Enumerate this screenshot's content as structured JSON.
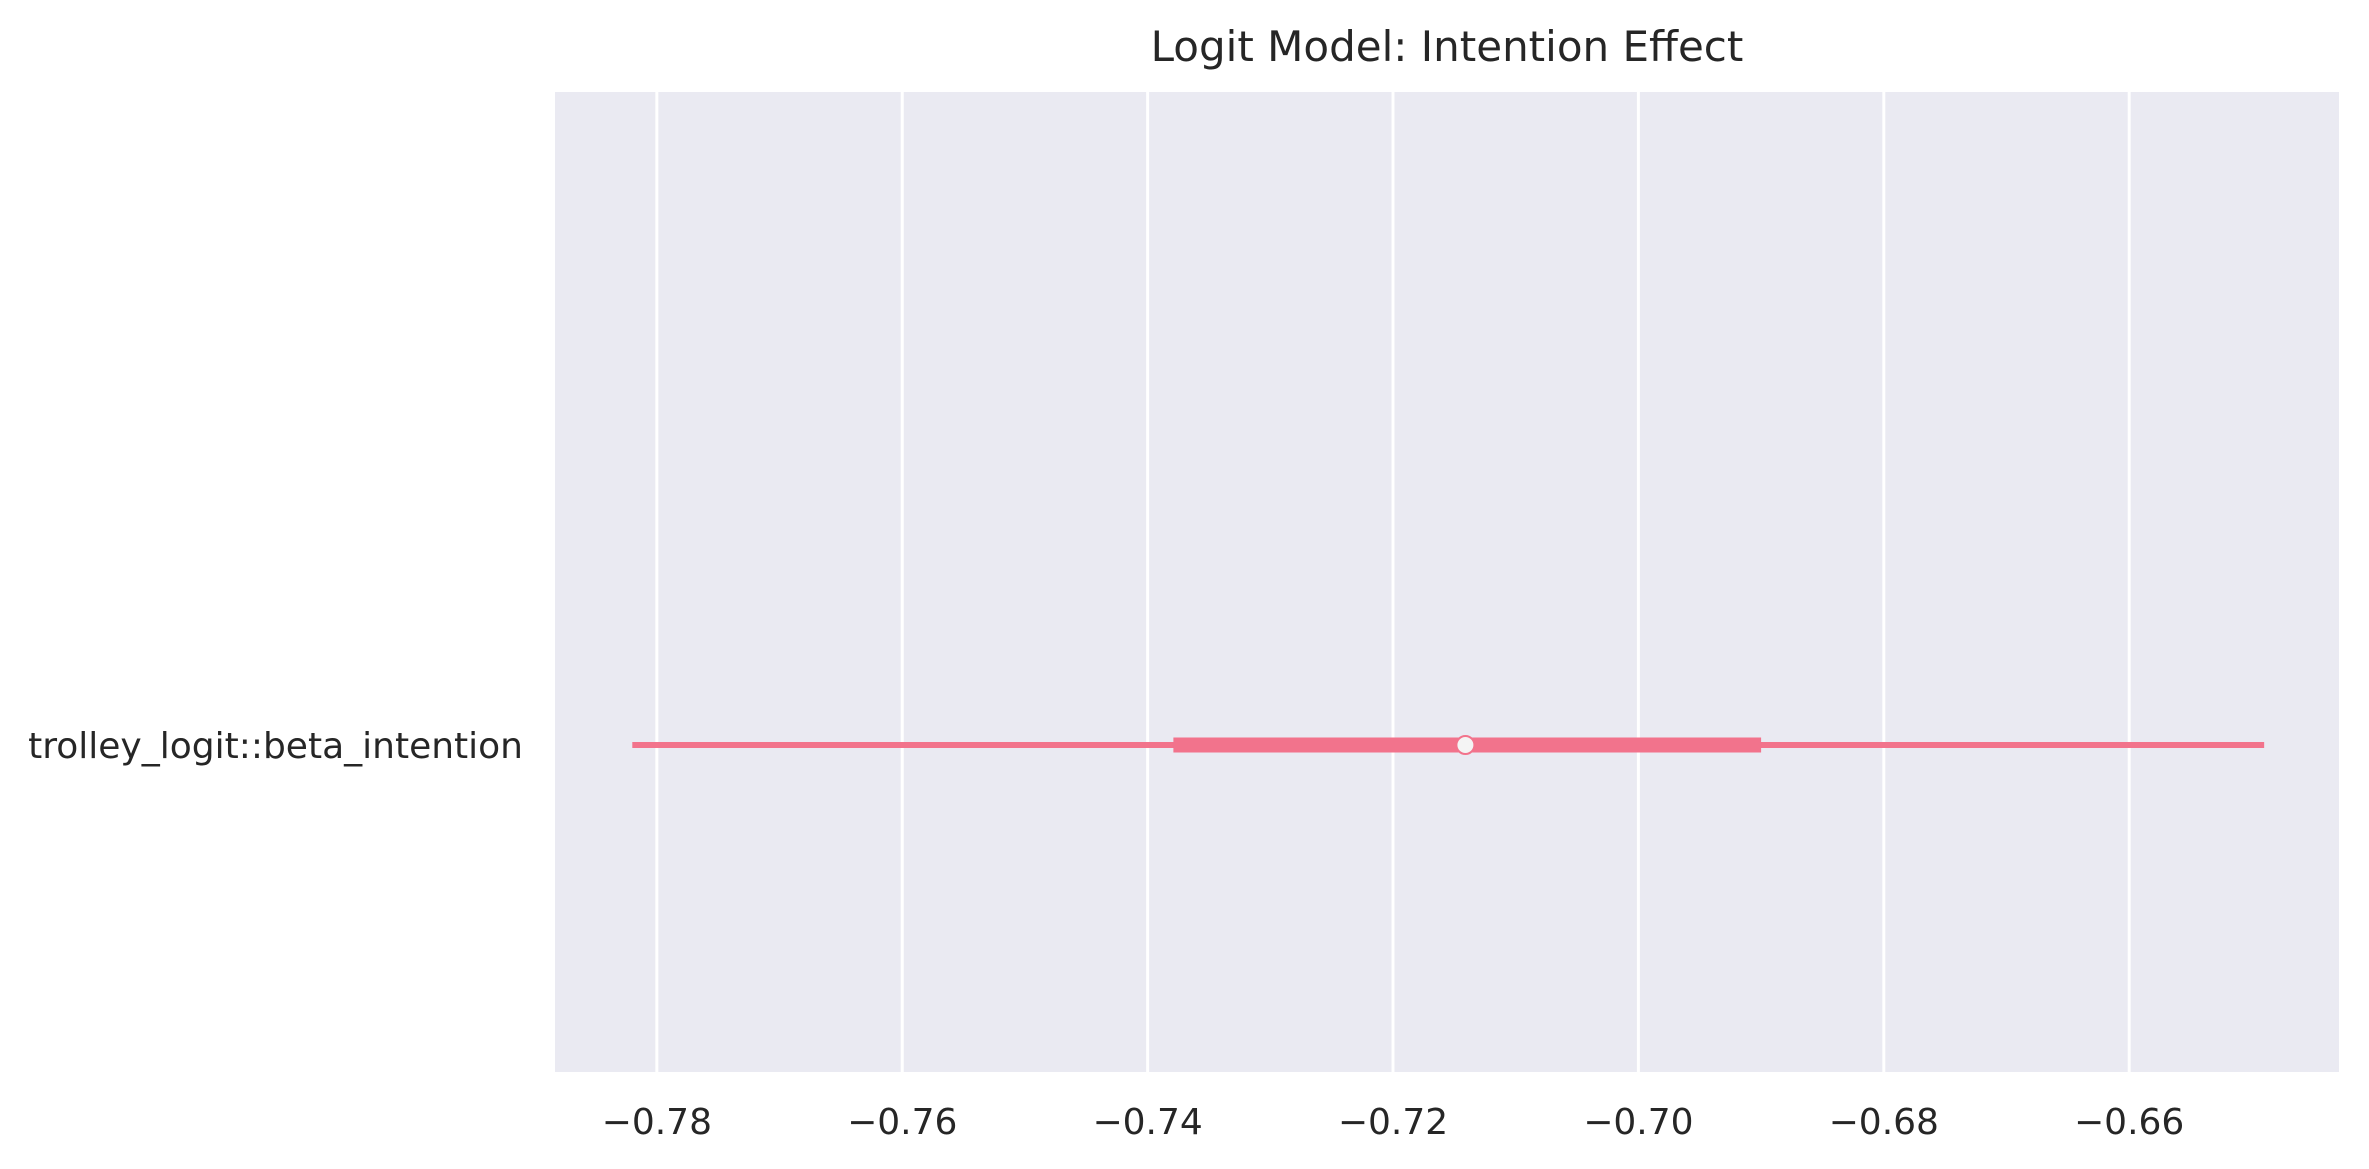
{
  "chart_data": {
    "type": "forest",
    "title": "Logit Model: Intention Effect",
    "xlabel": "",
    "ylabel": "",
    "xlim": [
      -0.7883,
      -0.6429
    ],
    "xticks": [
      -0.78,
      -0.76,
      -0.74,
      -0.72,
      -0.7,
      -0.68,
      -0.66
    ],
    "xtick_labels": [
      "−0.78",
      "−0.76",
      "−0.74",
      "−0.72",
      "−0.70",
      "−0.68",
      "−0.66"
    ],
    "grid": true,
    "background": "#EAEAF2",
    "grid_color": "#FFFFFF",
    "series_color": "#F2738C",
    "point_color": "#F4F4F4",
    "rows": [
      {
        "label": "trolley_logit::beta_intention",
        "estimate": -0.7141,
        "inner_interval": [
          -0.7379,
          -0.69
        ],
        "outer_interval": [
          -0.782,
          -0.649
        ]
      }
    ]
  }
}
